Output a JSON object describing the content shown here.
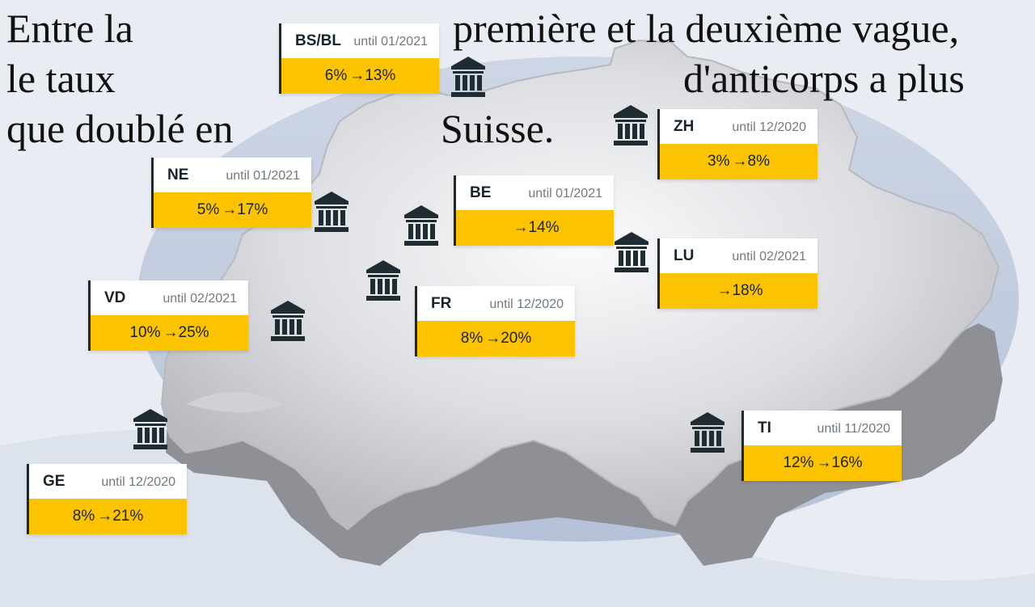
{
  "headline": {
    "line1_a": "Entre la",
    "line1_b": "première et la deuxième vague,",
    "line2_a": "le taux",
    "line2_b": "d'anticorps a plus",
    "line3_a": "que doublé en",
    "line3_b": "Suisse."
  },
  "arrow_symbol": "→",
  "colors": {
    "band": "#fcc300",
    "card_border": "#1c2a30",
    "icon": "#1f2d33"
  },
  "icon_name": "institution-icon",
  "regions": [
    {
      "code": "BS/BL",
      "date": "until 01/2021",
      "before": "6%",
      "after": "13%"
    },
    {
      "code": "ZH",
      "date": "until 12/2020",
      "before": "3%",
      "after": "8%"
    },
    {
      "code": "NE",
      "date": "until 01/2021",
      "before": "5%",
      "after": "17%"
    },
    {
      "code": "BE",
      "date": "until 01/2021",
      "before": "",
      "after": "14%"
    },
    {
      "code": "LU",
      "date": "until 02/2021",
      "before": "",
      "after": "18%"
    },
    {
      "code": "VD",
      "date": "until 02/2021",
      "before": "10%",
      "after": "25%"
    },
    {
      "code": "FR",
      "date": "until 12/2020",
      "before": "8%",
      "after": "20%"
    },
    {
      "code": "TI",
      "date": "until 11/2020",
      "before": "12%",
      "after": "16%"
    },
    {
      "code": "GE",
      "date": "until 12/2020",
      "before": "8%",
      "after": "21%"
    }
  ]
}
